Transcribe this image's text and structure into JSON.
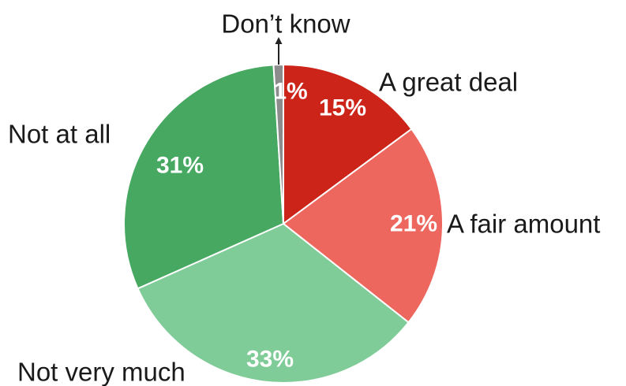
{
  "chart_data": {
    "type": "pie",
    "categories": [
      "A great deal",
      "A fair amount",
      "Not very much",
      "Not at all",
      "Don’t know"
    ],
    "values": [
      15,
      21,
      33,
      31,
      1
    ],
    "value_labels": [
      "15%",
      "21%",
      "33%",
      "31%",
      "1%"
    ],
    "colors": [
      "#cc2418",
      "#ee675e",
      "#80cc98",
      "#46a861",
      "#8c8c8c"
    ],
    "title": "",
    "legend": "none"
  }
}
